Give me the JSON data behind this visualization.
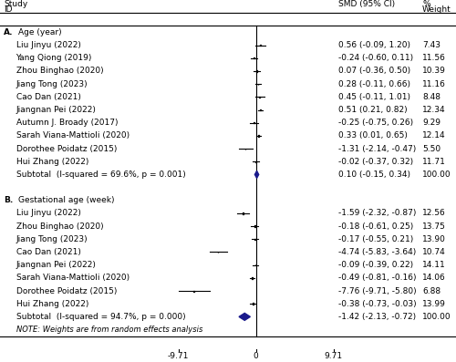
{
  "forest_xlim": [
    -9.71,
    9.71
  ],
  "xtick_labels": [
    "-9.71",
    "0",
    "9.71"
  ],
  "subtotal_A_label": "Subtotal  (I-squared = 69.6%, p = 0.001)",
  "subtotal_B_label": "Subtotal  (I-squared = 94.7%, p = 0.000)",
  "note": "NOTE: Weights are from random effects analysis",
  "studies_A": [
    {
      "name": "Liu Jinyu (2022)",
      "smd": 0.56,
      "ci_lo": -0.09,
      "ci_hi": 1.2,
      "weight": 7.43,
      "text": "0.56 (-0.09, 1.20)",
      "wt_text": "7.43"
    },
    {
      "name": "Yang Qiong (2019)",
      "smd": -0.24,
      "ci_lo": -0.6,
      "ci_hi": 0.11,
      "weight": 11.56,
      "text": "-0.24 (-0.60, 0.11)",
      "wt_text": "11.56"
    },
    {
      "name": "Zhou Binghao (2020)",
      "smd": 0.07,
      "ci_lo": -0.36,
      "ci_hi": 0.5,
      "weight": 10.39,
      "text": "0.07 (-0.36, 0.50)",
      "wt_text": "10.39"
    },
    {
      "name": "Jiang Tong (2023)",
      "smd": 0.28,
      "ci_lo": -0.11,
      "ci_hi": 0.66,
      "weight": 11.16,
      "text": "0.28 (-0.11, 0.66)",
      "wt_text": "11.16"
    },
    {
      "name": "Cao Dan (2021)",
      "smd": 0.45,
      "ci_lo": -0.11,
      "ci_hi": 1.01,
      "weight": 8.48,
      "text": "0.45 (-0.11, 1.01)",
      "wt_text": "8.48"
    },
    {
      "name": "Jiangnan Pei (2022)",
      "smd": 0.51,
      "ci_lo": 0.21,
      "ci_hi": 0.82,
      "weight": 12.34,
      "text": "0.51 (0.21, 0.82)",
      "wt_text": "12.34"
    },
    {
      "name": "Autumn J. Broady (2017)",
      "smd": -0.25,
      "ci_lo": -0.75,
      "ci_hi": 0.26,
      "weight": 9.29,
      "text": "-0.25 (-0.75, 0.26)",
      "wt_text": "9.29"
    },
    {
      "name": "Sarah Viana-Mattioli (2020)",
      "smd": 0.33,
      "ci_lo": 0.01,
      "ci_hi": 0.65,
      "weight": 12.14,
      "text": "0.33 (0.01, 0.65)",
      "wt_text": "12.14"
    },
    {
      "name": "Dorothee Poidatz (2015)",
      "smd": -1.31,
      "ci_lo": -2.14,
      "ci_hi": -0.47,
      "weight": 5.5,
      "text": "-1.31 (-2.14, -0.47)",
      "wt_text": "5.50"
    },
    {
      "name": "Hui Zhang (2022)",
      "smd": -0.02,
      "ci_lo": -0.37,
      "ci_hi": 0.32,
      "weight": 11.71,
      "text": "-0.02 (-0.37, 0.32)",
      "wt_text": "11.71"
    }
  ],
  "subtotal_A": {
    "smd": 0.1,
    "ci_lo": -0.15,
    "ci_hi": 0.34,
    "text": "0.10 (-0.15, 0.34)",
    "wt_text": "100.00"
  },
  "studies_B": [
    {
      "name": "Liu Jinyu (2022)",
      "smd": -1.59,
      "ci_lo": -2.32,
      "ci_hi": -0.87,
      "weight": 12.56,
      "text": "-1.59 (-2.32, -0.87)",
      "wt_text": "12.56"
    },
    {
      "name": "Zhou Binghao (2020)",
      "smd": -0.18,
      "ci_lo": -0.61,
      "ci_hi": 0.25,
      "weight": 13.75,
      "text": "-0.18 (-0.61, 0.25)",
      "wt_text": "13.75"
    },
    {
      "name": "Jiang Tong (2023)",
      "smd": -0.17,
      "ci_lo": -0.55,
      "ci_hi": 0.21,
      "weight": 13.9,
      "text": "-0.17 (-0.55, 0.21)",
      "wt_text": "13.90"
    },
    {
      "name": "Cao Dan (2021)",
      "smd": -4.74,
      "ci_lo": -5.83,
      "ci_hi": -3.64,
      "weight": 10.74,
      "text": "-4.74 (-5.83, -3.64)",
      "wt_text": "10.74"
    },
    {
      "name": "Jiangnan Pei (2022)",
      "smd": -0.09,
      "ci_lo": -0.39,
      "ci_hi": 0.22,
      "weight": 14.11,
      "text": "-0.09 (-0.39, 0.22)",
      "wt_text": "14.11"
    },
    {
      "name": "Sarah Viana-Mattioli (2020)",
      "smd": -0.49,
      "ci_lo": -0.81,
      "ci_hi": -0.16,
      "weight": 14.06,
      "text": "-0.49 (-0.81, -0.16)",
      "wt_text": "14.06"
    },
    {
      "name": "Dorothee Poidatz (2015)",
      "smd": -7.76,
      "ci_lo": -9.71,
      "ci_hi": -5.8,
      "weight": 6.88,
      "text": "-7.76 (-9.71, -5.80)",
      "wt_text": "6.88"
    },
    {
      "name": "Hui Zhang (2022)",
      "smd": -0.38,
      "ci_lo": -0.73,
      "ci_hi": -0.03,
      "weight": 13.99,
      "text": "-0.38 (-0.73, -0.03)",
      "wt_text": "13.99"
    }
  ],
  "subtotal_B": {
    "smd": -1.42,
    "ci_lo": -2.13,
    "ci_hi": -0.72,
    "text": "-1.42 (-2.13, -0.72)",
    "wt_text": "100.00"
  },
  "diamond_color": "#1a1a8c",
  "text_color": "#000000",
  "fontsize": 6.5
}
